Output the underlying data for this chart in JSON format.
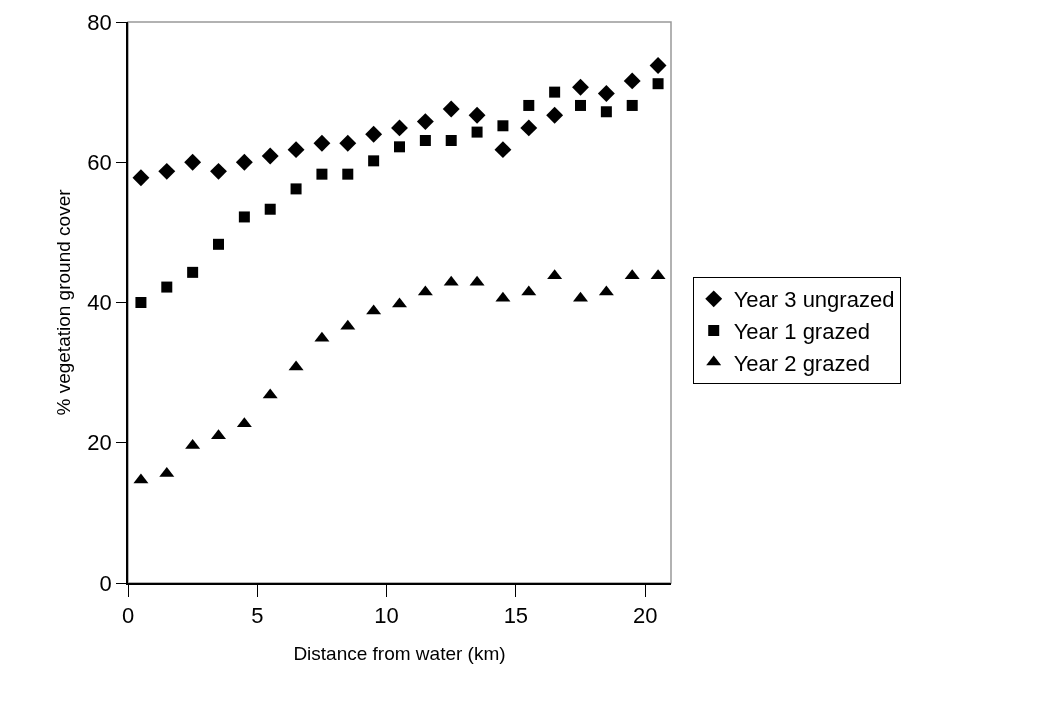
{
  "chart_data": {
    "type": "scatter",
    "xlabel": "Distance from water (km)",
    "ylabel": "% vegetation ground cover",
    "x": [
      0.5,
      1.5,
      2.5,
      3.5,
      4.5,
      5.5,
      6.5,
      7.5,
      8.5,
      9.5,
      10.5,
      11.5,
      12.5,
      13.5,
      14.5,
      15.5,
      16.5,
      17.5,
      18.5,
      19.5,
      20.5
    ],
    "series": [
      {
        "name": "Year 3 ungrazed",
        "color": "#000000",
        "marker": "diamond",
        "values": [
          57.8,
          58.7,
          60,
          58.7,
          60,
          60.9,
          61.8,
          62.7,
          62.7,
          64,
          64.9,
          65.8,
          67.6,
          66.7,
          61.8,
          64.9,
          66.7,
          70.7,
          69.8,
          71.6,
          73.8
        ]
      },
      {
        "name": "Year 1 grazed",
        "color": "#000000",
        "marker": "square",
        "values": [
          40,
          42.2,
          44.3,
          48.3,
          52.2,
          53.3,
          56.2,
          58.3,
          58.3,
          60.2,
          62.2,
          63.1,
          63.1,
          64.3,
          65.2,
          68.1,
          70,
          68.1,
          67.2,
          68.1,
          71.2
        ]
      },
      {
        "name": "Year 2 grazed",
        "color": "#000000",
        "marker": "triangle",
        "values": [
          14.7,
          15.6,
          19.6,
          21,
          22.7,
          26.8,
          30.8,
          34.9,
          36.6,
          38.8,
          39.8,
          41.5,
          42.9,
          42.9,
          40.6,
          41.5,
          43.8,
          40.6,
          41.5,
          43.8,
          43.8
        ]
      }
    ],
    "xlim": [
      0,
      21
    ],
    "xticks": [
      0,
      5,
      10,
      15,
      20
    ],
    "ylim": [
      0,
      80
    ],
    "yticks": [
      0,
      20,
      40,
      60,
      80
    ],
    "grid": false,
    "legend": "right"
  }
}
